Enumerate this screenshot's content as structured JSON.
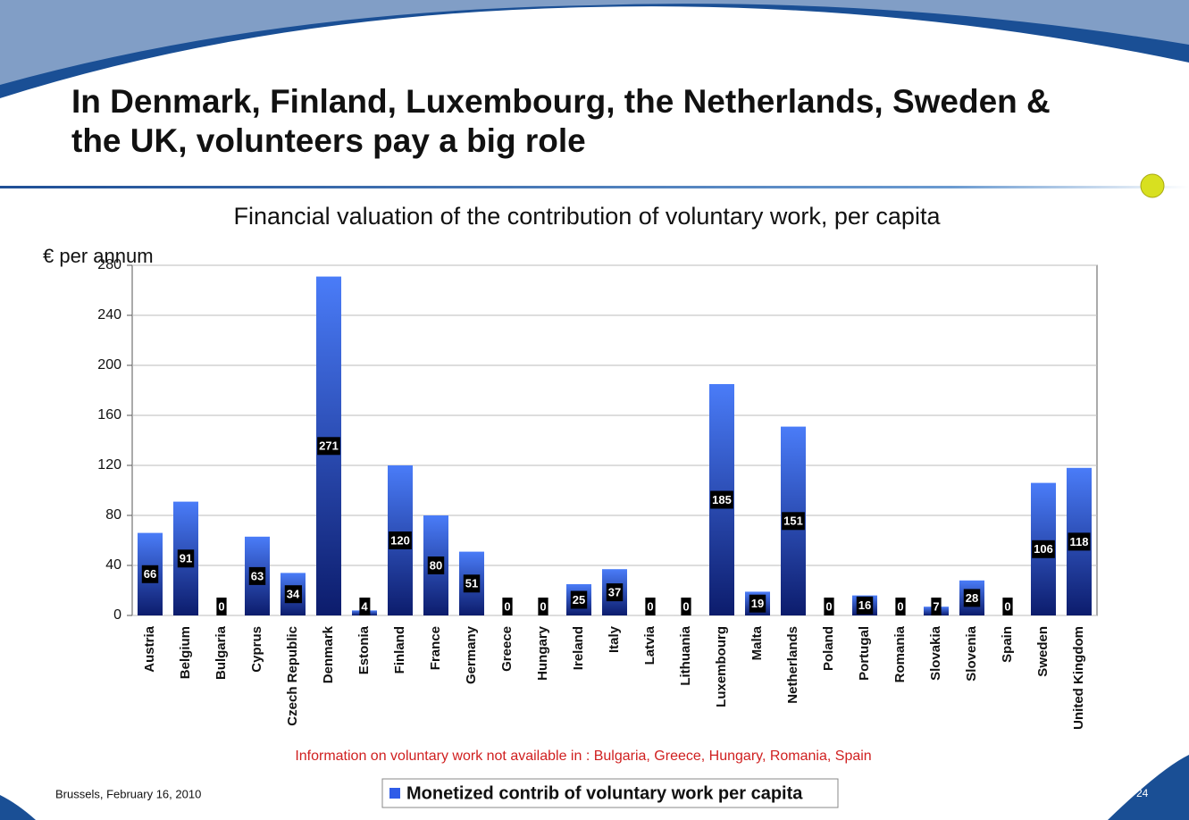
{
  "header": {
    "title": "In Denmark, Finland, Luxembourg, the Netherlands, Sweden & the UK, volunteers pay a big role"
  },
  "chart_data": {
    "type": "bar",
    "title": "Financial valuation of the contribution of voluntary work, per capita",
    "y_label": "€ per annum",
    "categories": [
      "Austria",
      "Belgium",
      "Bulgaria",
      "Cyprus",
      "Czech Republic",
      "Denmark",
      "Estonia",
      "Finland",
      "France",
      "Germany",
      "Greece",
      "Hungary",
      "Ireland",
      "Italy",
      "Latvia",
      "Lithuania",
      "Luxembourg",
      "Malta",
      "Netherlands",
      "Poland",
      "Portugal",
      "Romania",
      "Slovakia",
      "Slovenia",
      "Spain",
      "Sweden",
      "United Kingdom"
    ],
    "series": [
      {
        "name": "Monetized contrib of voluntary work per capita",
        "color": "#2f5ce8",
        "values": [
          66,
          91,
          0,
          63,
          34,
          271,
          4,
          120,
          80,
          51,
          0,
          0,
          25,
          37,
          0,
          0,
          185,
          19,
          151,
          0,
          16,
          0,
          7,
          28,
          0,
          106,
          118
        ]
      }
    ],
    "ylim": [
      0,
      280
    ],
    "yticks": [
      0,
      40,
      80,
      120,
      160,
      200,
      240,
      280
    ],
    "grid": true,
    "legend": "bottom",
    "annotation": "Information on voluntary work not available in : Bulgaria, Greece, Hungary, Romania, Spain"
  },
  "footer": {
    "left": "Brussels, February 16, 2010",
    "page": "24"
  }
}
